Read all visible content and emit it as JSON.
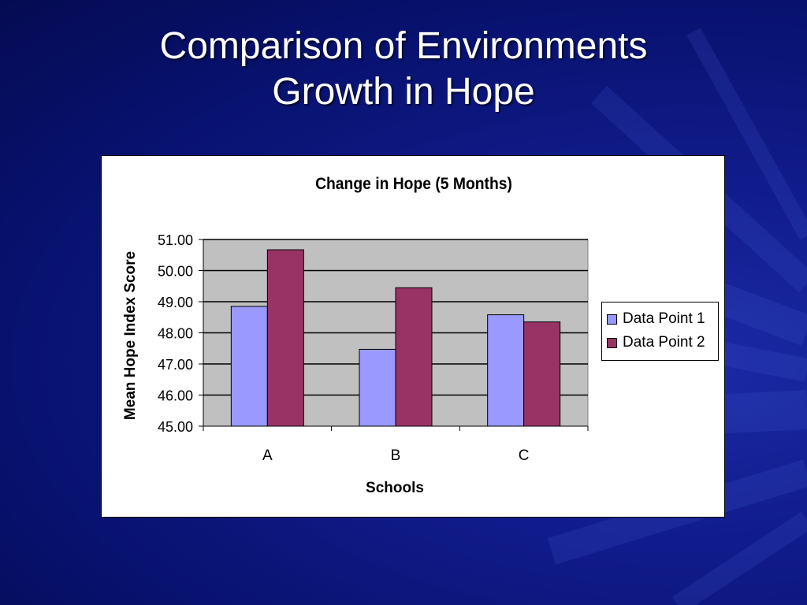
{
  "slide": {
    "title_line1": "Comparison of Environments",
    "title_line2": "Growth in Hope"
  },
  "colors": {
    "series1": "#9999ff",
    "series2": "#993366",
    "plot_bg": "#c0c0c0"
  },
  "chart_data": {
    "type": "bar",
    "title": "Change in Hope (5 Months)",
    "xlabel": "Schools",
    "ylabel": "Mean Hope Index Score",
    "categories": [
      "A",
      "B",
      "C"
    ],
    "series": [
      {
        "name": "Data Point 1",
        "values": [
          48.85,
          47.47,
          48.58
        ]
      },
      {
        "name": "Data Point 2",
        "values": [
          50.67,
          49.45,
          48.35
        ]
      }
    ],
    "ylim": [
      45,
      51
    ],
    "yticks": [
      "45.00",
      "46.00",
      "47.00",
      "48.00",
      "49.00",
      "50.00",
      "51.00"
    ],
    "grid": true,
    "legend_position": "right"
  }
}
